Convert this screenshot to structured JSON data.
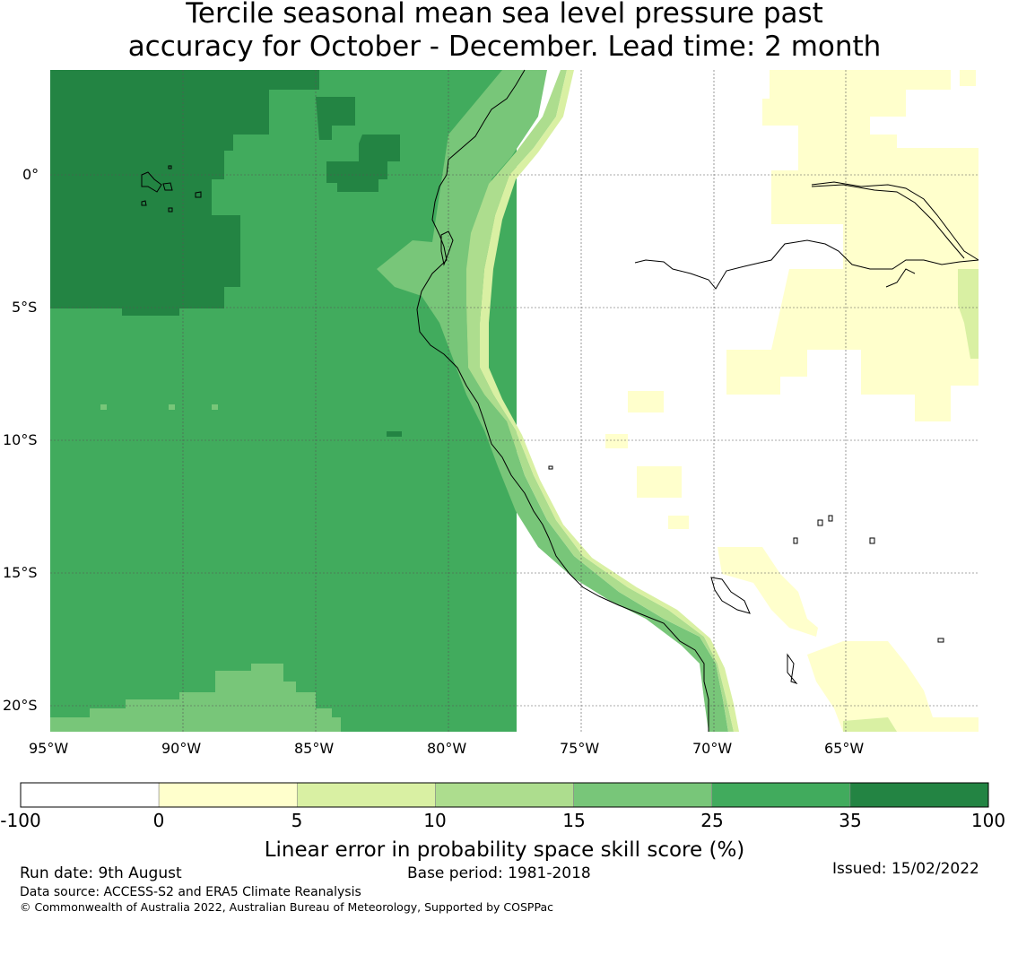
{
  "title": {
    "line1": "Tercile seasonal mean sea level pressure past",
    "line2": "accuracy for October - December. Lead time: 2 month"
  },
  "map": {
    "lat_labels": [
      "0°",
      "5°S",
      "10°S",
      "15°S",
      "20°S"
    ],
    "lon_labels": [
      "95°W",
      "90°W",
      "85°W",
      "80°W",
      "75°W",
      "70°W",
      "65°W"
    ],
    "extent": {
      "lon_min": -95,
      "lon_max": -60,
      "lat_min": -21,
      "lat_max": 4
    },
    "gridlines": true
  },
  "colorbar": {
    "boundaries": [
      "-100",
      "0",
      "5",
      "10",
      "15",
      "25",
      "35",
      "100"
    ],
    "colors": [
      "#ffffff",
      "#ffffcc",
      "#d9f0a3",
      "#addd8e",
      "#78c679",
      "#41ab5d",
      "#238443"
    ],
    "label": "Linear error in probability space skill score (%)"
  },
  "footer": {
    "run_date": "Run date: 9th August",
    "base_period": "Base period: 1981-2018",
    "issued": "Issued: 15/02/2022",
    "data_source": "Data source: ACCESS-S2 and ERA5 Climate Reanalysis",
    "copyright": "© Commonwealth of Australia 2022, Australian Bureau of Meteorology, Supported by COSPPac"
  }
}
